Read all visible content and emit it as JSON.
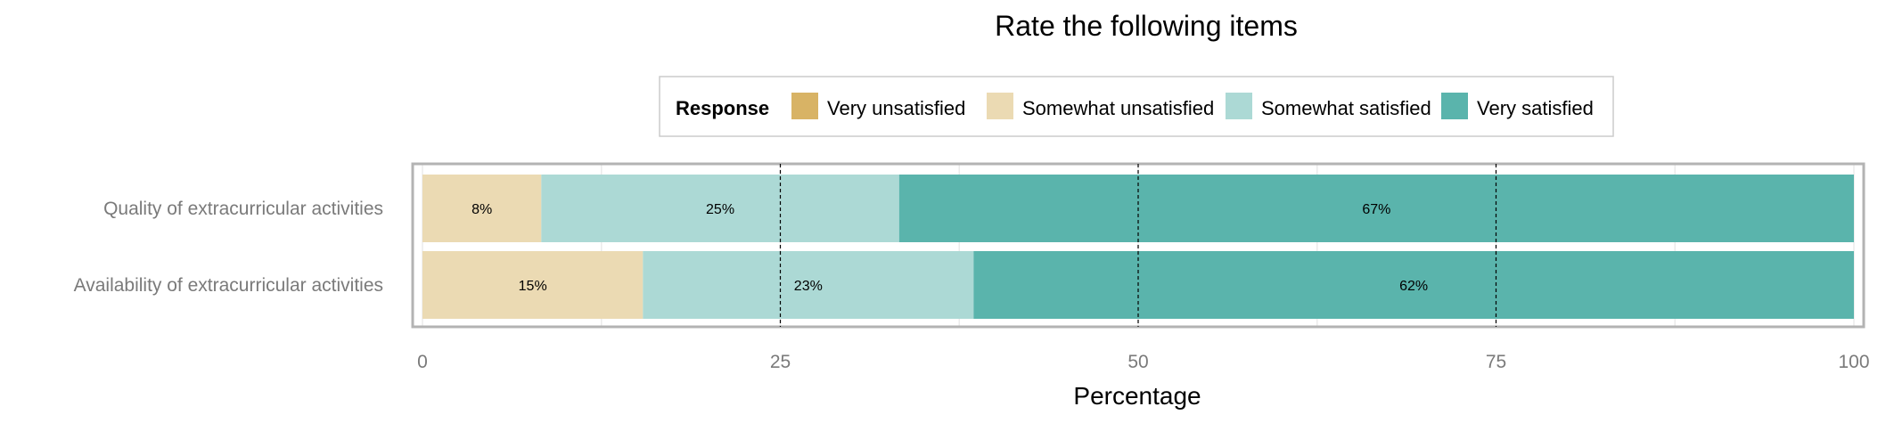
{
  "chart_data": {
    "type": "bar",
    "orientation": "horizontal",
    "stacked": true,
    "title": "Rate the following items",
    "xlabel": "Percentage",
    "ylabel": "",
    "xlim": [
      0,
      100
    ],
    "x_ticks": [
      "0",
      "25",
      "50",
      "75",
      "100"
    ],
    "x_tick_values": [
      0,
      25,
      50,
      75,
      100
    ],
    "categories": [
      "Quality of extracurricular activities",
      "Availability of extracurricular activities"
    ],
    "legend": {
      "title": "Response",
      "position": "top",
      "entries": [
        "Very unsatisfied",
        "Somewhat unsatisfied",
        "Somewhat satisfied",
        "Very satisfied"
      ]
    },
    "series": [
      {
        "name": "Very unsatisfied",
        "color": "#d8b365",
        "values": [
          0,
          0
        ],
        "labels": [
          "",
          ""
        ]
      },
      {
        "name": "Somewhat unsatisfied",
        "color": "#ebdab3",
        "values": [
          8.3,
          15.4
        ],
        "labels": [
          "8%",
          "15%"
        ]
      },
      {
        "name": "Somewhat satisfied",
        "color": "#acd9d5",
        "values": [
          25.0,
          23.1
        ],
        "labels": [
          "25%",
          "23%"
        ]
      },
      {
        "name": "Very satisfied",
        "color": "#5ab4ac",
        "values": [
          66.7,
          61.5
        ],
        "labels": [
          "67%",
          "62%"
        ]
      }
    ],
    "grid": true,
    "reference_lines": [
      25,
      50,
      75
    ]
  }
}
